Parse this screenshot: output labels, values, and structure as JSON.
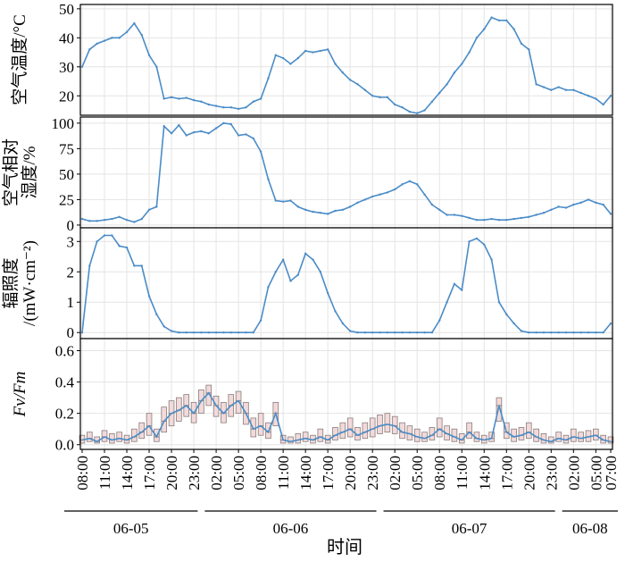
{
  "x_axis": {
    "label": "时间",
    "categories": [
      "08:00",
      null,
      null,
      "11:00",
      null,
      null,
      "14:00",
      null,
      null,
      "17:00",
      null,
      null,
      "20:00",
      null,
      null,
      "23:00",
      null,
      null,
      "02:00",
      null,
      null,
      "05:00",
      null,
      null,
      "08:00",
      null,
      null,
      "11:00",
      null,
      null,
      "14:00",
      null,
      null,
      "17:00",
      null,
      null,
      "20:00",
      null,
      null,
      "23:00",
      null,
      null,
      "02:00",
      null,
      null,
      "05:00",
      null,
      null,
      "08:00",
      null,
      null,
      "11:00",
      null,
      null,
      "14:00",
      null,
      null,
      "17:00",
      null,
      null,
      "20:00",
      null,
      null,
      "23:00",
      null,
      null,
      "02:00",
      null,
      null,
      "05:00",
      null,
      "07:00"
    ],
    "date_labels": [
      "06-05",
      "06-06",
      "06-07",
      "06-08"
    ]
  },
  "chart_data": [
    {
      "type": "line",
      "ylabel": [
        "空气温度/°C"
      ],
      "ylim": [
        13.3,
        51.5
      ],
      "yticks": [
        20,
        30,
        40,
        50
      ],
      "grid": true,
      "series": [
        {
          "color": "#4a8cc7",
          "values": [
            30,
            36,
            38,
            39,
            40,
            40,
            42,
            45,
            41,
            34,
            30,
            19,
            19.5,
            19,
            19.3,
            18.5,
            18,
            17,
            16.5,
            16,
            16,
            15.5,
            16,
            18,
            19,
            26,
            34,
            33,
            31,
            33,
            35.5,
            35,
            35.5,
            36,
            31,
            28,
            25.5,
            24,
            22,
            20,
            19.5,
            19.5,
            17,
            16,
            14.5,
            14,
            15,
            18,
            21,
            24,
            28,
            31,
            35,
            40,
            43,
            47,
            46,
            46,
            43,
            38,
            36,
            24,
            23,
            22,
            23,
            22,
            22,
            21,
            20,
            19,
            17,
            20
          ]
        }
      ]
    },
    {
      "type": "line",
      "ylabel": [
        "空气相对",
        "湿度/%"
      ],
      "ylim": [
        -2.7,
        106
      ],
      "yticks": [
        0,
        25,
        50,
        75,
        100
      ],
      "grid": true,
      "series": [
        {
          "color": "#4a8cc7",
          "values": [
            6,
            4,
            4,
            5,
            6,
            8,
            5,
            3,
            6,
            15,
            18,
            97,
            90,
            98,
            88,
            91,
            92,
            90,
            95,
            100,
            99,
            88,
            89,
            85,
            72,
            45,
            24,
            23,
            24,
            18,
            15,
            13,
            12,
            11,
            14,
            15,
            18,
            22,
            25,
            28,
            30,
            32,
            35,
            40,
            43,
            40,
            30,
            20,
            15,
            10,
            10,
            9,
            7,
            5,
            5,
            6,
            5,
            5,
            6,
            7,
            8,
            10,
            12,
            15,
            18,
            17,
            20,
            22,
            25,
            22,
            20,
            11
          ]
        }
      ]
    },
    {
      "type": "line",
      "ylabel": [
        "辐照度",
        "/(mW·cm⁻²)"
      ],
      "ylim": [
        -0.2,
        3.45
      ],
      "yticks": [
        0,
        1,
        2,
        3
      ],
      "grid": true,
      "series": [
        {
          "color": "#4a8cc7",
          "values": [
            0,
            2.2,
            3.0,
            3.2,
            3.2,
            2.85,
            2.8,
            2.2,
            2.2,
            1.2,
            0.6,
            0.2,
            0.05,
            0,
            0,
            0,
            0,
            0,
            0,
            0,
            0,
            0,
            0,
            0,
            0.4,
            1.5,
            2.0,
            2.4,
            1.7,
            1.9,
            2.6,
            2.4,
            2.0,
            1.3,
            0.7,
            0.3,
            0.05,
            0,
            0,
            0,
            0,
            0,
            0,
            0,
            0,
            0,
            0,
            0,
            0.4,
            1.0,
            1.6,
            1.4,
            3.0,
            3.1,
            2.9,
            2.4,
            1.0,
            0.6,
            0.3,
            0.05,
            0,
            0,
            0,
            0,
            0,
            0,
            0,
            0,
            0,
            0,
            0,
            0.3
          ]
        }
      ]
    },
    {
      "type": "box",
      "ylabel": [
        "Fv/Fm"
      ],
      "ylim": [
        -0.03,
        0.677
      ],
      "yticks": [
        {
          "value": 0,
          "label": "0.0"
        },
        0.2,
        0.4,
        0.6
      ],
      "grid": true,
      "series": [
        {
          "color": "#4a8cc7",
          "box_color": "#f2dada",
          "values": [
            0.03,
            0.04,
            0.02,
            0.05,
            0.03,
            0.04,
            0.03,
            0.05,
            0.08,
            0.12,
            0.05,
            0.15,
            0.2,
            0.22,
            0.25,
            0.2,
            0.28,
            0.33,
            0.25,
            0.2,
            0.25,
            0.28,
            0.2,
            0.1,
            0.12,
            0.08,
            0.2,
            0.03,
            0.02,
            0.03,
            0.04,
            0.03,
            0.05,
            0.03,
            0.06,
            0.08,
            0.1,
            0.06,
            0.08,
            0.1,
            0.12,
            0.13,
            0.12,
            0.08,
            0.07,
            0.05,
            0.04,
            0.06,
            0.1,
            0.07,
            0.05,
            0.03,
            0.08,
            0.04,
            0.03,
            0.04,
            0.25,
            0.08,
            0.05,
            0.06,
            0.08,
            0.05,
            0.03,
            0.02,
            0.04,
            0.03,
            0.05,
            0.04,
            0.05,
            0.06,
            0.03,
            0.02
          ],
          "q1": [
            0.01,
            0.02,
            0.01,
            0.02,
            0.01,
            0.02,
            0.01,
            0.02,
            0.04,
            0.06,
            0.02,
            0.08,
            0.12,
            0.15,
            0.18,
            0.14,
            0.2,
            0.25,
            0.18,
            0.14,
            0.18,
            0.2,
            0.13,
            0.05,
            0.06,
            0.04,
            0.12,
            0.01,
            0.01,
            0.01,
            0.02,
            0.01,
            0.02,
            0.01,
            0.03,
            0.04,
            0.05,
            0.03,
            0.04,
            0.05,
            0.07,
            0.08,
            0.07,
            0.04,
            0.03,
            0.02,
            0.02,
            0.03,
            0.05,
            0.03,
            0.02,
            0.01,
            0.04,
            0.02,
            0.01,
            0.02,
            0.15,
            0.04,
            0.02,
            0.03,
            0.04,
            0.02,
            0.01,
            0.01,
            0.02,
            0.01,
            0.02,
            0.02,
            0.02,
            0.03,
            0.01,
            0.01
          ],
          "q3": [
            0.06,
            0.08,
            0.05,
            0.09,
            0.07,
            0.08,
            0.06,
            0.1,
            0.14,
            0.2,
            0.1,
            0.24,
            0.28,
            0.3,
            0.32,
            0.27,
            0.35,
            0.38,
            0.31,
            0.27,
            0.32,
            0.34,
            0.27,
            0.17,
            0.2,
            0.14,
            0.27,
            0.06,
            0.05,
            0.07,
            0.08,
            0.06,
            0.1,
            0.06,
            0.11,
            0.14,
            0.17,
            0.11,
            0.14,
            0.17,
            0.19,
            0.2,
            0.18,
            0.14,
            0.12,
            0.1,
            0.08,
            0.11,
            0.17,
            0.12,
            0.1,
            0.07,
            0.14,
            0.08,
            0.06,
            0.08,
            0.3,
            0.14,
            0.1,
            0.11,
            0.14,
            0.1,
            0.07,
            0.05,
            0.08,
            0.06,
            0.1,
            0.08,
            0.09,
            0.1,
            0.06,
            0.05
          ]
        }
      ]
    }
  ]
}
